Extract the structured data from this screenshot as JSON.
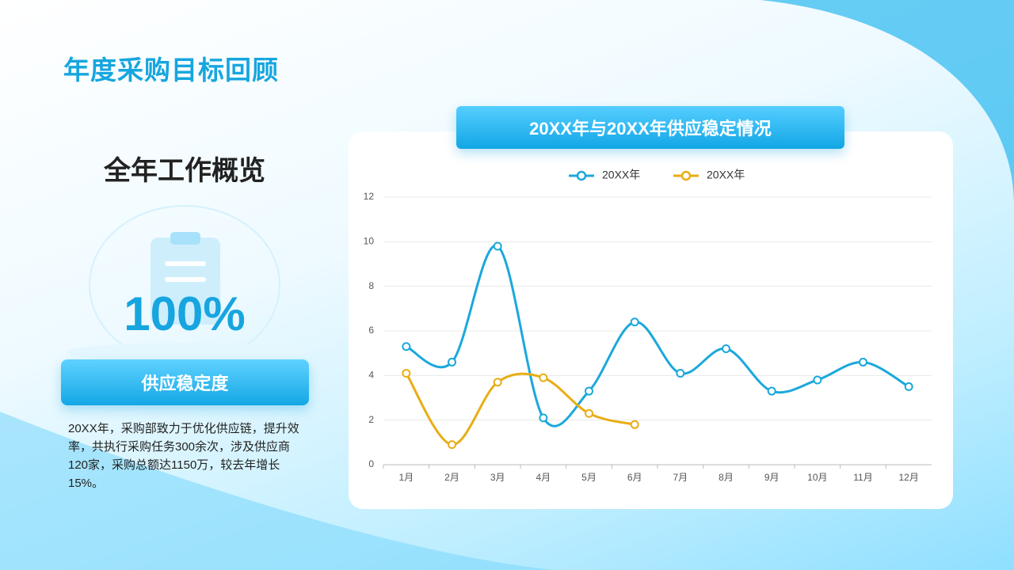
{
  "title": "年度采购目标回顾",
  "section_title": "全年工作概览",
  "stat": "100%",
  "badge": "供应稳定度",
  "description": "20XX年，采购部致力于优化供应链，提升效率，共执行采购任务300余次，涉及供应商120家，采购总额达1150万，较去年增长15%。",
  "chart_data": {
    "type": "line",
    "title": "20XX年与20XX年供应稳定情况",
    "smooth": true,
    "categories": [
      "1月",
      "2月",
      "3月",
      "4月",
      "5月",
      "6月",
      "7月",
      "8月",
      "9月",
      "10月",
      "11月",
      "12月"
    ],
    "series": [
      {
        "name": "20XX年",
        "color": "#1ba8db",
        "values": [
          5.3,
          4.6,
          9.8,
          2.1,
          3.3,
          6.4,
          4.1,
          5.2,
          3.3,
          3.8,
          4.6,
          3.5
        ]
      },
      {
        "name": "20XX年",
        "color": "#e9ad14",
        "values": [
          4.1,
          0.9,
          3.7,
          3.9,
          2.3,
          1.8,
          null,
          null,
          null,
          null,
          null,
          null
        ]
      }
    ],
    "ylim": [
      0,
      12
    ],
    "yticks": [
      0,
      2,
      4,
      6,
      8,
      10,
      12
    ],
    "grid": true,
    "legend": "top"
  }
}
